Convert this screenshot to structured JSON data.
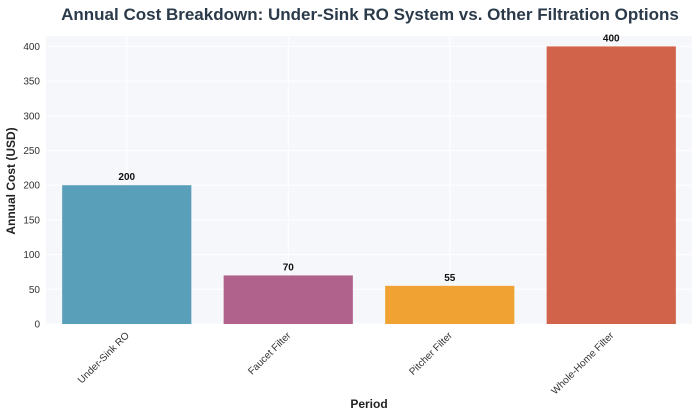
{
  "chart_data": {
    "type": "bar",
    "title": "Annual Cost Breakdown: Under-Sink RO System vs. Other Filtration Options",
    "xlabel": "Period",
    "ylabel": "Annual Cost (USD)",
    "categories": [
      "Under-Sink RO",
      "Faucet Filter",
      "Pitcher Filter",
      "Whole-Home Filter"
    ],
    "values": [
      200,
      70,
      55,
      400
    ],
    "data_labels": [
      "200",
      "70",
      "55",
      "400"
    ],
    "colors": [
      "#5a9fba",
      "#b0628c",
      "#f0a332",
      "#d0634a"
    ],
    "ylim": [
      0,
      415
    ],
    "yticks": [
      0,
      50,
      100,
      150,
      200,
      250,
      300,
      350,
      400
    ],
    "grid": true,
    "plot_background": "#f5f7fa"
  }
}
